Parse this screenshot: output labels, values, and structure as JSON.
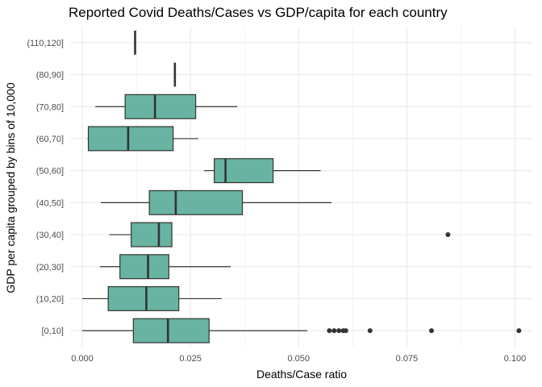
{
  "chart_data": {
    "type": "boxplot",
    "orientation": "horizontal",
    "title": "Reported Covid Deaths/Cases vs GDP/capita for each country",
    "xlabel": "Deaths/Case ratio",
    "ylabel": "GDP per capita grouped by bins of 10,000",
    "xlim": [
      -0.0028,
      0.104
    ],
    "x_ticks": [
      0.0,
      0.025,
      0.05,
      0.075,
      0.1
    ],
    "x_tick_labels": [
      "0.000",
      "0.025",
      "0.050",
      "0.075",
      "0.100"
    ],
    "grid": true,
    "categories": [
      "[0,10]",
      "(10,20]",
      "(20,30]",
      "(30,40]",
      "(40,50]",
      "(50,60]",
      "(60,70]",
      "(70,80]",
      "(80,90]",
      "(110,120]"
    ],
    "boxes": [
      {
        "min": 0.0,
        "q1": 0.0118,
        "median": 0.0198,
        "q3": 0.0293,
        "max": 0.052,
        "outliers": [
          0.0571,
          0.0582,
          0.0593,
          0.0603,
          0.0609,
          0.0665,
          0.0807,
          0.1009
        ]
      },
      {
        "min": 0.0,
        "q1": 0.006,
        "median": 0.0148,
        "q3": 0.0223,
        "max": 0.0322,
        "outliers": []
      },
      {
        "min": 0.0041,
        "q1": 0.0087,
        "median": 0.0152,
        "q3": 0.02,
        "max": 0.0343,
        "outliers": []
      },
      {
        "min": 0.0062,
        "q1": 0.0113,
        "median": 0.0177,
        "q3": 0.0207,
        "max": 0.0207,
        "outliers": [
          0.0845
        ]
      },
      {
        "min": 0.0043,
        "q1": 0.0155,
        "median": 0.0216,
        "q3": 0.037,
        "max": 0.0576,
        "outliers": []
      },
      {
        "min": 0.0281,
        "q1": 0.0305,
        "median": 0.0331,
        "q3": 0.0441,
        "max": 0.0551,
        "outliers": []
      },
      {
        "min": 0.0012,
        "q1": 0.0014,
        "median": 0.0106,
        "q3": 0.021,
        "max": 0.0268,
        "outliers": []
      },
      {
        "min": 0.003,
        "q1": 0.0099,
        "median": 0.0168,
        "q3": 0.0262,
        "max": 0.0358,
        "outliers": []
      },
      {
        "min": 0.0214,
        "q1": 0.0214,
        "median": 0.0214,
        "q3": 0.0214,
        "max": 0.0214,
        "outliers": []
      },
      {
        "min": 0.0122,
        "q1": 0.0122,
        "median": 0.0122,
        "q3": 0.0122,
        "max": 0.0122,
        "outliers": []
      }
    ],
    "box_fill": "#69b3a2",
    "line_color": "#333333",
    "grid_color": "#ebebeb"
  }
}
